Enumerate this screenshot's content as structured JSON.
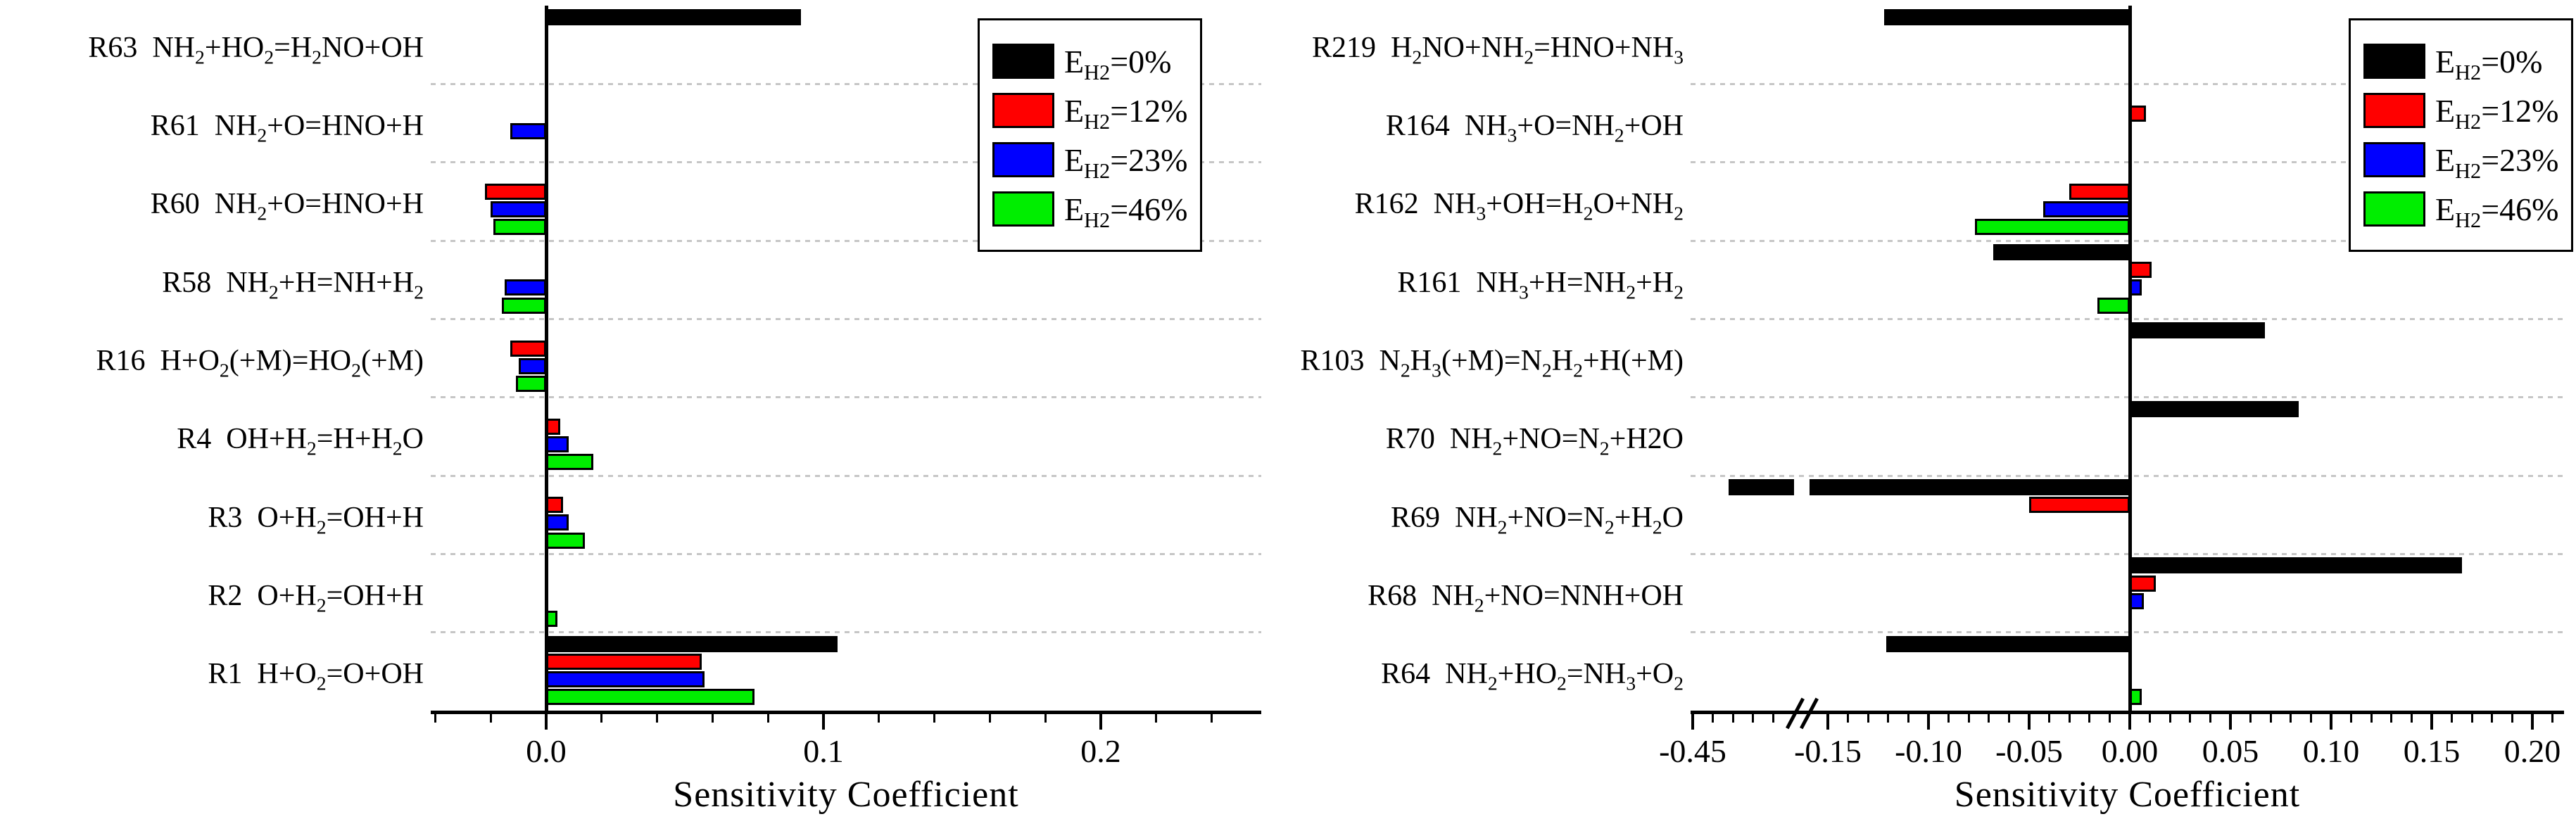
{
  "figure": {
    "background": "#ffffff",
    "font_color": "#000000"
  },
  "legend": {
    "entries": [
      {
        "label": "E~H2~=0%",
        "color": "#000000"
      },
      {
        "label": "E~H2~=12%",
        "color": "#ff0000"
      },
      {
        "label": "E~H2~=23%",
        "color": "#0000ff"
      },
      {
        "label": "E~H2~=46%",
        "color": "#00ee00"
      }
    ],
    "position": "top-right-inside"
  },
  "chart_data": [
    {
      "type": "bar",
      "orientation": "horizontal",
      "title": "",
      "xlabel": "Sensitivity Coefficient",
      "grid": "dashed-horizontal",
      "categories": [
        {
          "id": "R63",
          "formula": "NH~2~+HO~2~=H~2~NO+OH"
        },
        {
          "id": "R61",
          "formula": "NH~2~+O=HNO+H"
        },
        {
          "id": "R60",
          "formula": "NH~2~+O=HNO+H"
        },
        {
          "id": "R58",
          "formula": "NH~2~+H=NH+H~2~"
        },
        {
          "id": "R16",
          "formula": "H+O~2~(+M)=HO~2~(+M)"
        },
        {
          "id": "R4",
          "formula": "OH+H~2~=H+H~2~O"
        },
        {
          "id": "R3",
          "formula": "O+H~2~=OH+H"
        },
        {
          "id": "R2",
          "formula": "O+H~2~=OH+H"
        },
        {
          "id": "R1",
          "formula": "H+O~2~=O+OH"
        }
      ],
      "series": [
        {
          "name": "E~H2~=0%",
          "color": "#000000",
          "values": [
            0.092,
            0,
            0,
            0,
            0,
            0,
            0,
            0,
            0.105
          ]
        },
        {
          "name": "E~H2~=12%",
          "color": "#ff0000",
          "values": [
            0,
            0,
            -0.022,
            0,
            -0.013,
            0.005,
            0.006,
            0,
            0.056
          ]
        },
        {
          "name": "E~H2~=23%",
          "color": "#0000ff",
          "values": [
            0,
            -0.013,
            -0.02,
            -0.015,
            -0.01,
            0.008,
            0.008,
            0,
            0.057
          ]
        },
        {
          "name": "E~H2~=46%",
          "color": "#00ee00",
          "values": [
            0,
            0,
            -0.019,
            -0.016,
            -0.011,
            0.017,
            0.014,
            0.004,
            0.075
          ]
        }
      ],
      "x_axis": {
        "range": [
          -0.042,
          0.258
        ],
        "major_ticks": [
          {
            "value": 0.0,
            "label": "0.0"
          },
          {
            "value": 0.1,
            "label": "0.1"
          },
          {
            "value": 0.2,
            "label": "0.2"
          }
        ],
        "minor_step": 0.02
      }
    },
    {
      "type": "bar",
      "orientation": "horizontal",
      "title": "",
      "xlabel": "Sensitivity Coefficient",
      "grid": "dashed-horizontal",
      "axis_break": {
        "between": [
          -0.45,
          -0.15
        ],
        "style": "double-slash"
      },
      "categories": [
        {
          "id": "R219",
          "formula": "H~2~NO+NH~2~=HNO+NH~3~"
        },
        {
          "id": "R164",
          "formula": "NH~3~+O=NH~2~+OH"
        },
        {
          "id": "R162",
          "formula": "NH~3~+OH=H~2~O+NH~2~"
        },
        {
          "id": "R161",
          "formula": "NH~3~+H=NH~2~+H~2~"
        },
        {
          "id": "R103",
          "formula": "N~2~H~3~(+M)=N~2~H~2~+H(+M)"
        },
        {
          "id": "R70",
          "formula": "NH~2~+NO=N~2~+H2O"
        },
        {
          "id": "R69",
          "formula": "NH~2~+NO=N~2~+H~2~O"
        },
        {
          "id": "R68",
          "formula": "NH~2~+NO=NNH+OH"
        },
        {
          "id": "R64",
          "formula": "NH~2~+HO~2~=NH~3~+O~2~"
        }
      ],
      "series": [
        {
          "name": "E~H2~=0%",
          "color": "#000000",
          "values": [
            -0.122,
            0,
            0,
            -0.068,
            0.067,
            0.084,
            -0.36,
            0.165,
            -0.121
          ]
        },
        {
          "name": "E~H2~=12%",
          "color": "#ff0000",
          "values": [
            0,
            0.008,
            -0.03,
            0.011,
            0,
            0,
            -0.05,
            0.013,
            0
          ]
        },
        {
          "name": "E~H2~=23%",
          "color": "#0000ff",
          "values": [
            0,
            0,
            -0.043,
            0.006,
            0,
            0,
            0,
            0.007,
            0
          ]
        },
        {
          "name": "E~H2~=46%",
          "color": "#00ee00",
          "values": [
            0,
            0,
            -0.077,
            -0.016,
            0,
            0,
            0,
            0,
            0.006
          ]
        }
      ],
      "x_axis": {
        "range_left_segment": [
          -0.455,
          -0.2
        ],
        "range_right_segment": [
          -0.175,
          0.216
        ],
        "major_ticks": [
          {
            "value": -0.45,
            "label": "-0.45"
          },
          {
            "value": -0.15,
            "label": "-0.15"
          },
          {
            "value": -0.1,
            "label": "-0.10"
          },
          {
            "value": -0.05,
            "label": "-0.05"
          },
          {
            "value": 0.0,
            "label": "0.00"
          },
          {
            "value": 0.05,
            "label": "0.05"
          },
          {
            "value": 0.1,
            "label": "0.10"
          },
          {
            "value": 0.15,
            "label": "0.15"
          },
          {
            "value": 0.2,
            "label": "0.20"
          }
        ],
        "minor_step_right": 0.01,
        "minor_ticks_left": [
          -0.4,
          -0.35,
          -0.3,
          -0.25
        ]
      }
    }
  ]
}
